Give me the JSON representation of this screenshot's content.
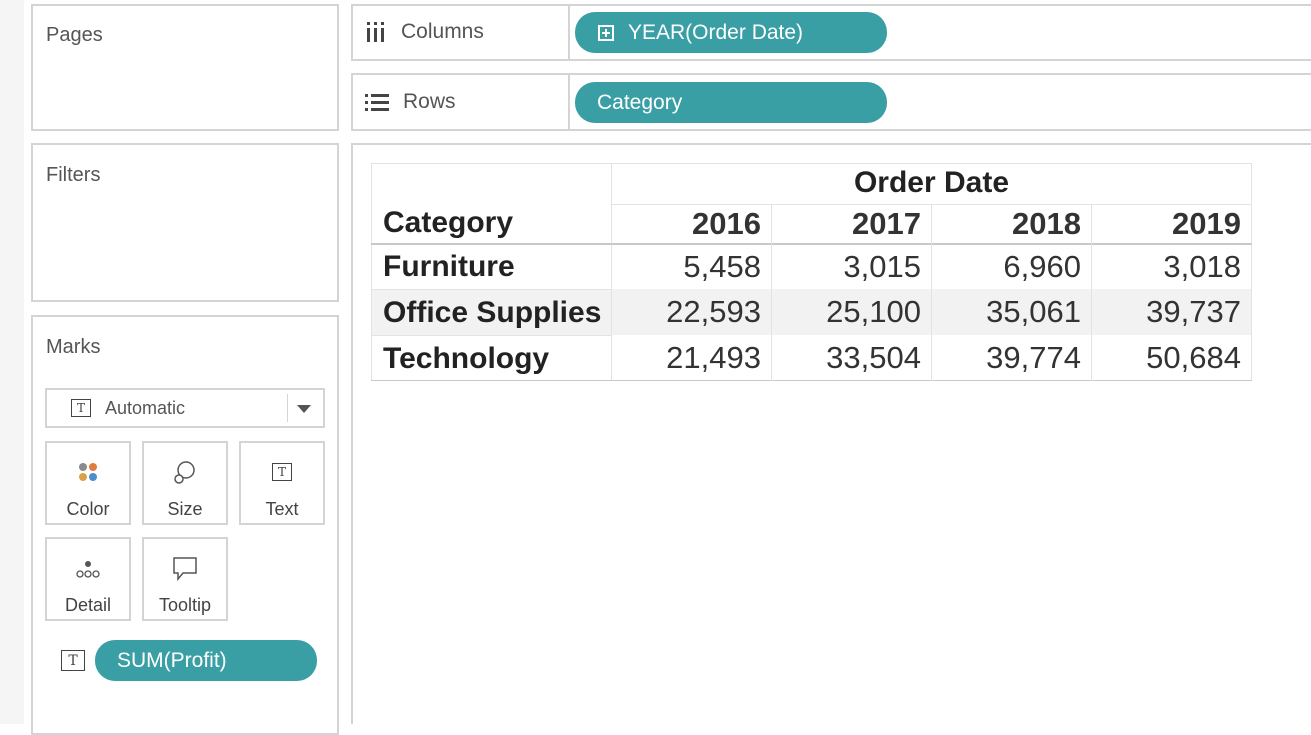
{
  "shelves": {
    "pages_label": "Pages",
    "columns_label": "Columns",
    "rows_label": "Rows",
    "columns_pill": "YEAR(Order Date)",
    "rows_pill": "Category"
  },
  "filters_label": "Filters",
  "marks": {
    "title": "Marks",
    "type": "Automatic",
    "buttons": [
      "Color",
      "Size",
      "Text",
      "Detail",
      "Tooltip"
    ],
    "measure_pill": "SUM(Profit)",
    "text_icon_glyph": "T"
  },
  "table": {
    "column_group_header": "Order Date",
    "row_header": "Category",
    "years": [
      "2016",
      "2017",
      "2018",
      "2019"
    ],
    "rows": [
      {
        "category": "Furniture",
        "values": [
          "5,458",
          "3,015",
          "6,960",
          "3,018"
        ]
      },
      {
        "category": "Office Supplies",
        "values": [
          "22,593",
          "25,100",
          "35,061",
          "39,737"
        ]
      },
      {
        "category": "Technology",
        "values": [
          "21,493",
          "33,504",
          "39,774",
          "50,684"
        ]
      }
    ]
  },
  "colors": {
    "pill": "#3a9ea5",
    "border": "#d4d4d4",
    "row_highlight": "#f2f2f2"
  }
}
